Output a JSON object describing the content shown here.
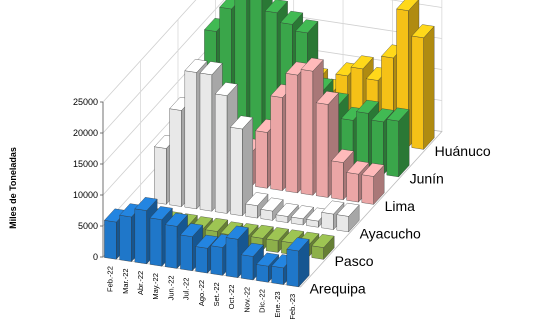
{
  "chart_data": {
    "type": "bar",
    "subtype": "3d-column",
    "ylabel": "Miles de Toneladas",
    "ylim": [
      0,
      25000
    ],
    "yticks": [
      0,
      5000,
      10000,
      15000,
      20000,
      25000
    ],
    "ytick_labels": [
      "0",
      "5000",
      "10000",
      "15000",
      "20000",
      "25000"
    ],
    "categories": [
      "Feb.-22",
      "Mar.-22",
      "Abr.-22",
      "May.-22",
      "Jun.-22",
      "Jul.-22",
      "Ago.-22",
      "Set.-22",
      "Oct.-22",
      "Nov.-22",
      "Dic.-22",
      "Ene.-23",
      "Feb.-23"
    ],
    "grid": true,
    "series": [
      {
        "name": "Arequipa",
        "color": "#1f77c9",
        "values": [
          6000,
          7200,
          8600,
          7500,
          6800,
          5500,
          4000,
          4500,
          6200,
          3800,
          2600,
          2700,
          5800
        ]
      },
      {
        "name": "Pasco",
        "color": "#8db04a",
        "values": [
          1900,
          2000,
          1900,
          1900,
          1800,
          1900,
          1700,
          1800,
          1900,
          1900,
          1900,
          1900,
          1900
        ]
      },
      {
        "name": "Ayacucho",
        "color": "#e8e8e8",
        "values": [
          9000,
          15500,
          22000,
          22000,
          19000,
          14000,
          2000,
          1500,
          1000,
          1000,
          1000,
          2500,
          2500
        ]
      },
      {
        "name": "Lima",
        "color": "#eba6a6",
        "values": [
          2000,
          2000,
          3000,
          4000,
          5500,
          9000,
          15000,
          19000,
          20000,
          15000,
          6000,
          4500,
          4500
        ]
      },
      {
        "name": "Junín",
        "color": "#3aa64a",
        "values": [
          19000,
          23000,
          26000,
          26000,
          23500,
          22000,
          21000,
          12000,
          10000,
          8000,
          9500,
          8500,
          9000
        ]
      },
      {
        "name": "Huánuco",
        "color": "#f5c117",
        "values": [
          4000,
          6000,
          9500,
          11500,
          12000,
          8500,
          7000,
          10000,
          11500,
          10000,
          14000,
          22000,
          18000
        ]
      }
    ]
  }
}
